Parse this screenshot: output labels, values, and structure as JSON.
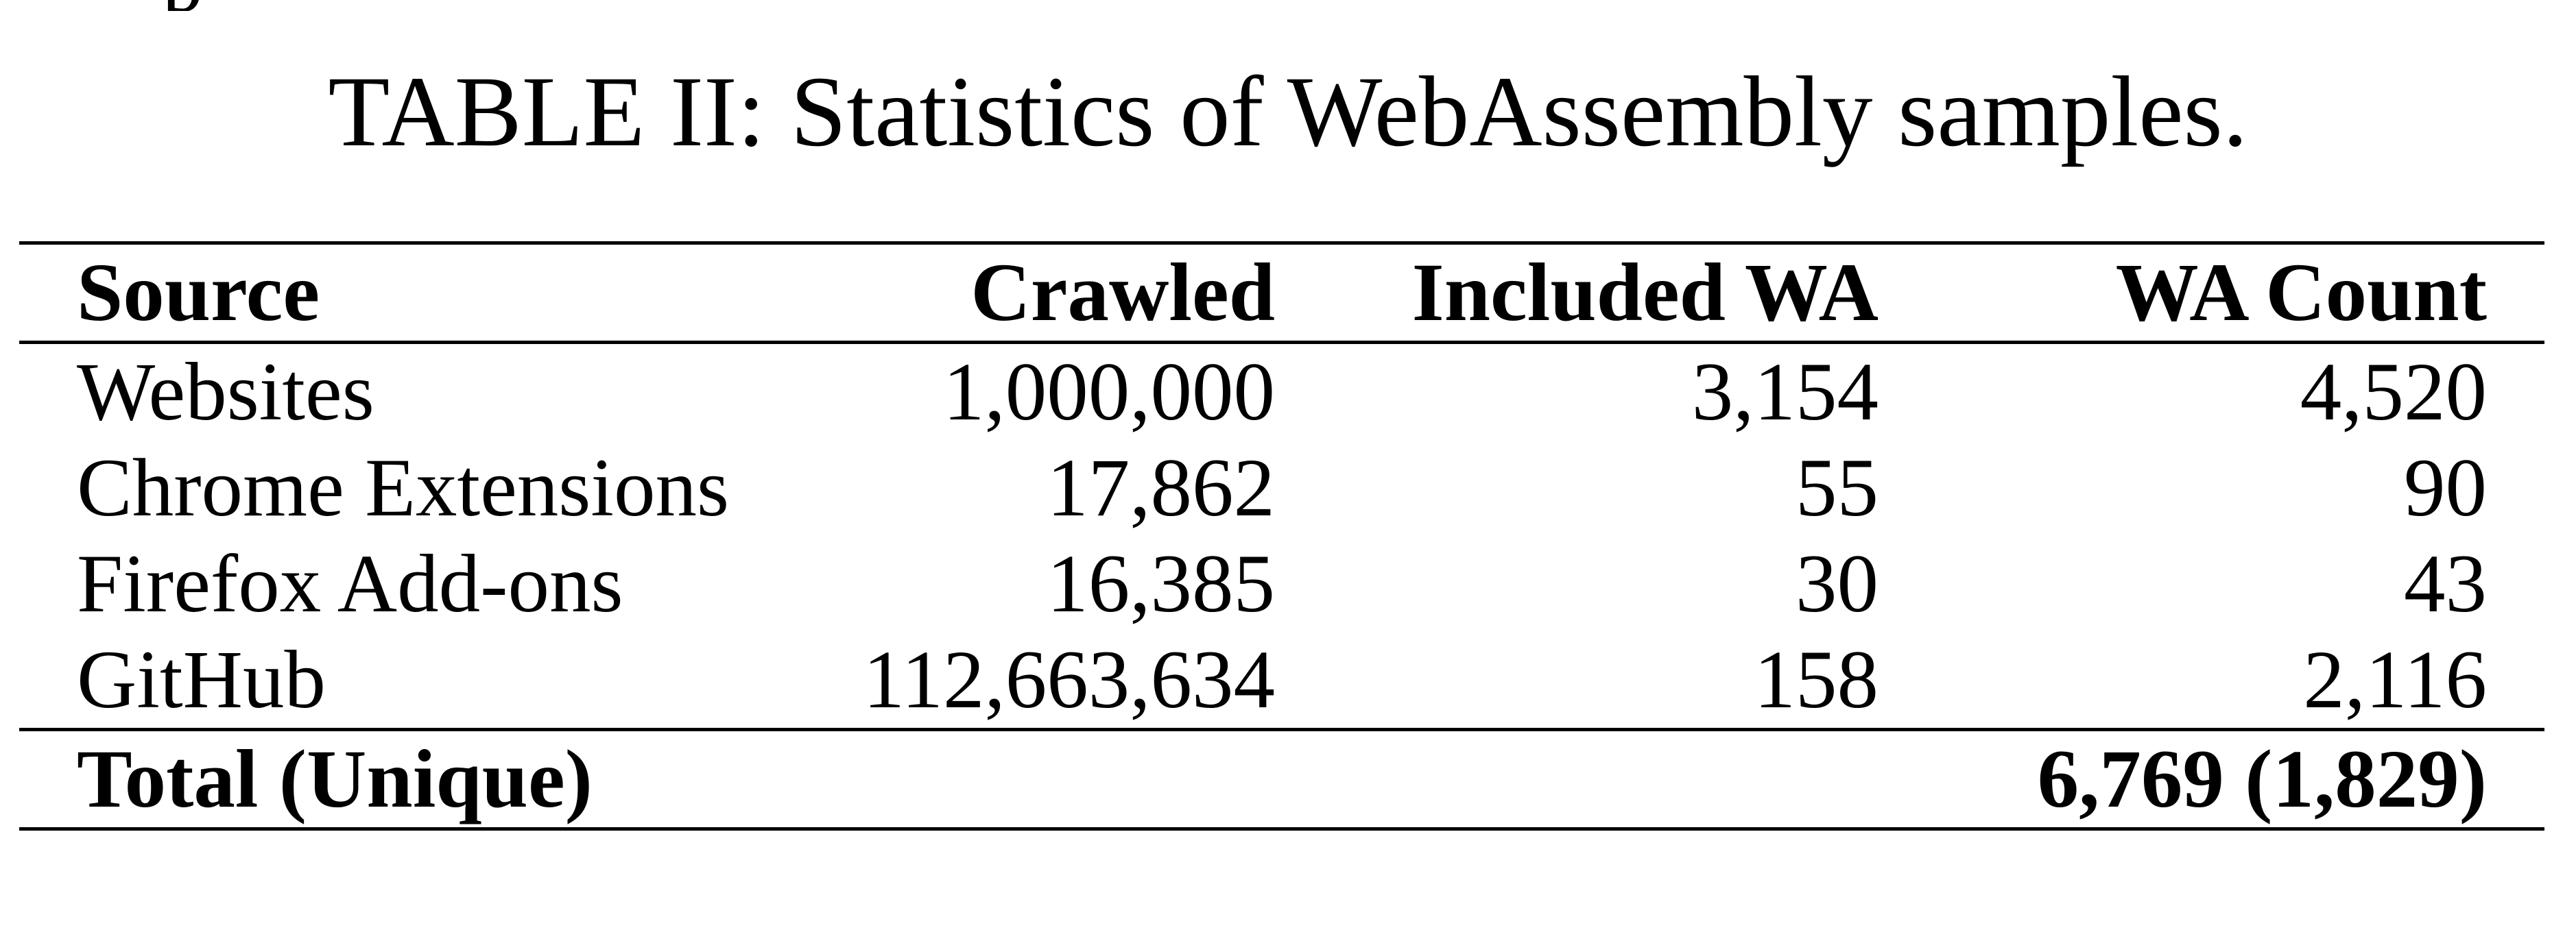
{
  "caption": "TABLE II: Statistics of WebAssembly samples.",
  "table": {
    "headers": {
      "source": "Source",
      "crawled": "Crawled",
      "included": "Included WA",
      "count": "WA Count"
    },
    "rows": [
      {
        "source": "Websites",
        "crawled": "1,000,000",
        "included": "3,154",
        "count": "4,520"
      },
      {
        "source": "Chrome Extensions",
        "crawled": "17,862",
        "included": "55",
        "count": "90"
      },
      {
        "source": "Firefox Add-ons",
        "crawled": "16,385",
        "included": "30",
        "count": "43"
      },
      {
        "source": "GitHub",
        "crawled": "112,663,634",
        "included": "158",
        "count": "2,116"
      }
    ],
    "total": {
      "label": "Total (Unique)",
      "count": "6,769 (1,829)"
    }
  }
}
